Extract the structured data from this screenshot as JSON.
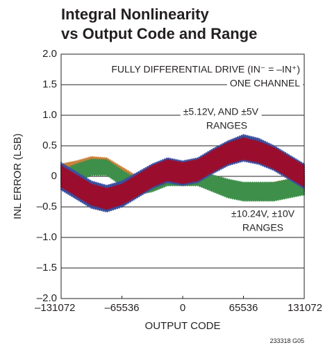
{
  "chart_data": {
    "type": "band",
    "title": [
      "Integral Nonlinearity",
      "vs Output Code and Range"
    ],
    "x_label": "OUTPUT CODE",
    "y_label": "INL ERROR (LSB)",
    "footnote": "233318 G05",
    "annotations": [
      "FULLY DIFFERENTIAL DRIVE (IN⁻ = –IN⁺)",
      "ONE CHANNEL",
      "±5.12V, AND ±5V",
      "RANGES",
      "±10.24V, ±10V",
      "RANGES"
    ],
    "xlim": [
      -131072,
      131072
    ],
    "ylim": [
      -2,
      2
    ],
    "xticks": [
      {
        "value": -131072,
        "label": "–131072"
      },
      {
        "value": -65536,
        "label": "–65536"
      },
      0,
      65536,
      131072
    ],
    "yticks": [
      {
        "value": 2,
        "label": "2.0"
      },
      {
        "value": 1.5,
        "label": "1.5"
      },
      {
        "value": 1,
        "label": "1.0"
      },
      {
        "value": 0.5,
        "label": "0.5"
      },
      0,
      {
        "value": -0.5,
        "label": "–0.5"
      },
      {
        "value": -1,
        "label": "–1.0"
      },
      {
        "value": -1.5,
        "label": "–1.5"
      },
      {
        "value": -2,
        "label": "–2.0"
      }
    ],
    "grid": true,
    "x": [
      -131072,
      -114688,
      -98304,
      -81920,
      -65536,
      -49152,
      -32768,
      -16384,
      0,
      16384,
      32768,
      49152,
      65536,
      81920,
      98304,
      114688,
      131072
    ],
    "series": [
      {
        "color": "#c8823c",
        "lower": [
          -0.1,
          0.0,
          0.1,
          0.1,
          -0.05,
          -0.2,
          -0.2,
          -0.1,
          -0.1,
          -0.1,
          -0.2,
          -0.3,
          -0.35,
          -0.35,
          -0.3,
          -0.3,
          -0.25
        ],
        "upper": [
          0.2,
          0.25,
          0.32,
          0.3,
          0.15,
          0.0,
          -0.05,
          0.05,
          0.05,
          0.05,
          -0.05,
          -0.1,
          -0.12,
          -0.12,
          -0.1,
          -0.05,
          0.0
        ]
      },
      {
        "color": "#3e8f4a",
        "lower": [
          -0.2,
          -0.1,
          0.02,
          0.02,
          -0.15,
          -0.3,
          -0.25,
          -0.15,
          -0.15,
          -0.15,
          -0.25,
          -0.35,
          -0.4,
          -0.4,
          -0.4,
          -0.35,
          -0.3
        ],
        "upper": [
          0.1,
          0.2,
          0.28,
          0.27,
          0.1,
          -0.05,
          0.05,
          0.12,
          0.12,
          0.12,
          0.02,
          -0.05,
          -0.1,
          -0.1,
          -0.1,
          -0.05,
          -0.02
        ]
      },
      {
        "color": "#3a4fa0",
        "lower": [
          -0.22,
          -0.37,
          -0.52,
          -0.58,
          -0.5,
          -0.35,
          -0.2,
          -0.1,
          -0.15,
          -0.1,
          0.05,
          0.18,
          0.25,
          0.2,
          0.1,
          -0.05,
          -0.2
        ],
        "upper": [
          0.22,
          0.07,
          -0.08,
          -0.15,
          -0.08,
          0.06,
          0.2,
          0.3,
          0.25,
          0.3,
          0.45,
          0.58,
          0.68,
          0.62,
          0.5,
          0.35,
          0.2
        ]
      },
      {
        "color": "#9b0d2c",
        "lower": [
          -0.17,
          -0.32,
          -0.47,
          -0.54,
          -0.46,
          -0.32,
          -0.17,
          -0.07,
          -0.12,
          -0.07,
          0.08,
          0.21,
          0.28,
          0.23,
          0.13,
          -0.02,
          -0.17
        ],
        "upper": [
          0.17,
          0.02,
          -0.13,
          -0.2,
          -0.13,
          0.02,
          0.17,
          0.27,
          0.22,
          0.27,
          0.42,
          0.55,
          0.63,
          0.57,
          0.47,
          0.32,
          0.17
        ]
      }
    ]
  }
}
